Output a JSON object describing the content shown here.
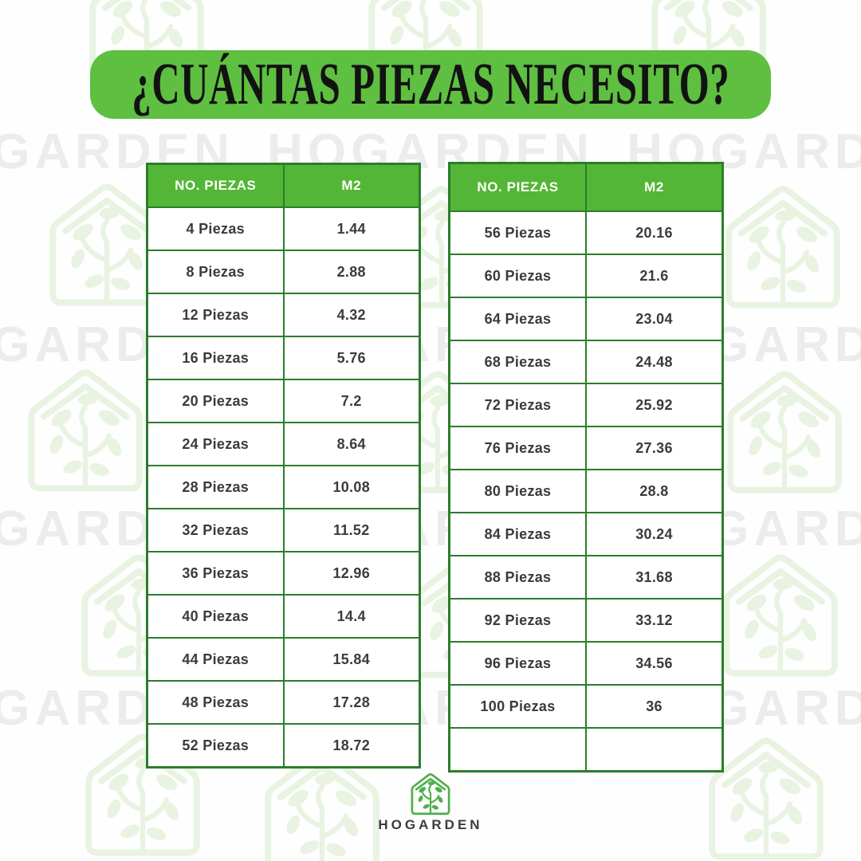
{
  "title": "¿CUÁNTAS PIEZAS NECESITO?",
  "brand": {
    "name": "HOGARDEN"
  },
  "watermark": {
    "row_text": "HOGARDEN HOGARDEN HOGARDEN"
  },
  "colors": {
    "banner_green": "#5ebf41",
    "header_green": "#54b636",
    "table_border_green": "#2b7d2b",
    "footer_logo_green": "#4db04b",
    "watermark_text_gray": "#ececec",
    "watermark_logo_green": "#e8f3e1",
    "cell_text": "#3b3b3b",
    "title_text": "#121212"
  },
  "tables": {
    "left": {
      "headers": [
        "NO. PIEZAS",
        "M2"
      ],
      "rows": [
        [
          "4 Piezas",
          "1.44"
        ],
        [
          "8 Piezas",
          "2.88"
        ],
        [
          "12 Piezas",
          "4.32"
        ],
        [
          "16 Piezas",
          "5.76"
        ],
        [
          "20 Piezas",
          "7.2"
        ],
        [
          "24 Piezas",
          "8.64"
        ],
        [
          "28 Piezas",
          "10.08"
        ],
        [
          "32 Piezas",
          "11.52"
        ],
        [
          "36 Piezas",
          "12.96"
        ],
        [
          "40 Piezas",
          "14.4"
        ],
        [
          "44 Piezas",
          "15.84"
        ],
        [
          "48 Piezas",
          "17.28"
        ],
        [
          "52 Piezas",
          "18.72"
        ]
      ]
    },
    "right": {
      "headers": [
        "NO. PIEZAS",
        "M2"
      ],
      "rows": [
        [
          "56 Piezas",
          "20.16"
        ],
        [
          "60 Piezas",
          "21.6"
        ],
        [
          "64 Piezas",
          "23.04"
        ],
        [
          "68 Piezas",
          "24.48"
        ],
        [
          "72 Piezas",
          "25.92"
        ],
        [
          "76 Piezas",
          "27.36"
        ],
        [
          "80 Piezas",
          "28.8"
        ],
        [
          "84 Piezas",
          "30.24"
        ],
        [
          "88 Piezas",
          "31.68"
        ],
        [
          "92 Piezas",
          "33.12"
        ],
        [
          "96 Piezas",
          "34.56"
        ],
        [
          "100 Piezas",
          "36"
        ],
        [
          "",
          ""
        ]
      ]
    }
  }
}
